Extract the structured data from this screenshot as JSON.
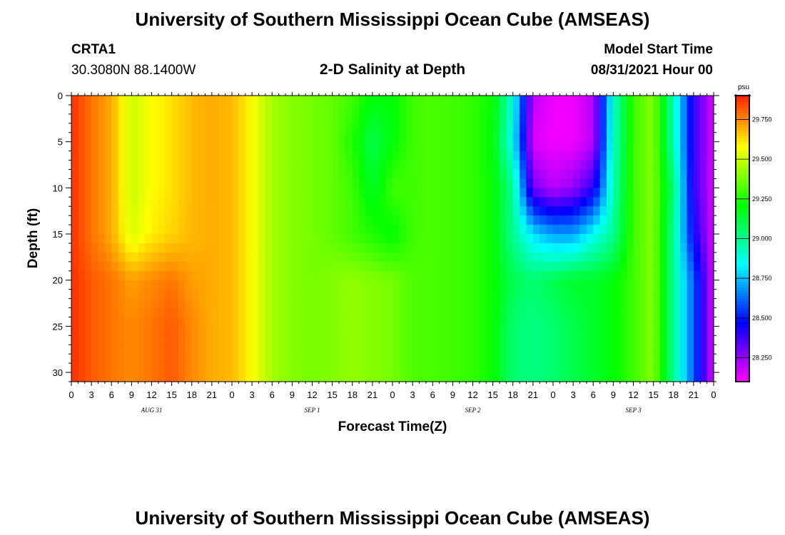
{
  "header": {
    "title": "University of Southern Mississippi Ocean Cube (AMSEAS)",
    "station": "CRTA1",
    "coords": "30.3080N  88.1400W",
    "start_label": "Model Start Time",
    "start_value": "08/31/2021 Hour 00"
  },
  "footer": {
    "title": "University of Southern Mississippi Ocean Cube (AMSEAS)"
  },
  "chart_data": {
    "type": "heatmap",
    "title": "2-D Salinity at Depth",
    "xlabel": "Forecast Time(Z)",
    "ylabel": "Depth (ft)",
    "x_start": "08/31/2021 00Z",
    "x_range_hours": [
      0,
      96
    ],
    "x_tick_labels": [
      "0",
      "3",
      "6",
      "9",
      "12",
      "15",
      "18",
      "21",
      "0",
      "3",
      "6",
      "9",
      "12",
      "15",
      "18",
      "21",
      "0",
      "3",
      "6",
      "9",
      "12",
      "15",
      "18",
      "21",
      "0",
      "3",
      "6",
      "9",
      "12",
      "15",
      "18",
      "21",
      "0"
    ],
    "date_labels": [
      {
        "text": "AUG 31",
        "hour": 12
      },
      {
        "text": "SEP 1",
        "hour": 36
      },
      {
        "text": "SEP 2",
        "hour": 60
      },
      {
        "text": "SEP 3",
        "hour": 84
      }
    ],
    "y_range": [
      0,
      31
    ],
    "y_ticks": [
      0,
      5,
      10,
      15,
      20,
      25,
      30
    ],
    "y_inverted": true,
    "colorbar": {
      "unit": "psu",
      "range": [
        28.1,
        29.9
      ],
      "tick_values": [
        28.25,
        28.5,
        28.75,
        29.0,
        29.25,
        29.5,
        29.75
      ],
      "tick_labels": [
        "28.250",
        "28.500",
        "28.750",
        "29.000",
        "29.250",
        "29.500",
        "29.750"
      ]
    },
    "hours": [
      0,
      3,
      6,
      9,
      12,
      15,
      18,
      21,
      24,
      27,
      30,
      33,
      36,
      39,
      42,
      45,
      48,
      51,
      54,
      57,
      60,
      63,
      66,
      69,
      72,
      75,
      78,
      81,
      84,
      87,
      90,
      93,
      96
    ],
    "depths": [
      0,
      5,
      10,
      15,
      20,
      25,
      30
    ],
    "salinity": [
      [
        29.88,
        29.78,
        29.7,
        29.5,
        29.58,
        29.62,
        29.68,
        29.7,
        29.68,
        29.58,
        29.45,
        29.4,
        29.38,
        29.35,
        29.3,
        29.2,
        29.2,
        29.3,
        29.32,
        29.3,
        29.28,
        29.22,
        28.9,
        28.2,
        28.12,
        28.12,
        28.2,
        28.9,
        29.3,
        29.4,
        28.95,
        28.4,
        28.15
      ],
      [
        29.88,
        29.78,
        29.7,
        29.5,
        29.58,
        29.62,
        29.68,
        29.7,
        29.68,
        29.58,
        29.45,
        29.4,
        29.38,
        29.35,
        29.25,
        29.1,
        29.2,
        29.3,
        29.32,
        29.3,
        29.28,
        29.2,
        28.85,
        28.15,
        28.12,
        28.12,
        28.2,
        28.92,
        29.3,
        29.4,
        28.95,
        28.4,
        28.15
      ],
      [
        29.88,
        29.78,
        29.7,
        29.5,
        29.58,
        29.62,
        29.68,
        29.7,
        29.68,
        29.58,
        29.45,
        29.4,
        29.38,
        29.35,
        29.3,
        29.15,
        29.3,
        29.3,
        29.32,
        29.3,
        29.28,
        29.22,
        29.0,
        28.3,
        28.2,
        28.25,
        28.4,
        28.95,
        29.3,
        29.4,
        29.05,
        28.4,
        28.15
      ],
      [
        29.88,
        29.78,
        29.7,
        29.52,
        29.6,
        29.64,
        29.68,
        29.7,
        29.68,
        29.58,
        29.45,
        29.4,
        29.38,
        29.35,
        29.3,
        29.25,
        29.2,
        29.3,
        29.32,
        29.3,
        29.28,
        29.22,
        29.0,
        28.8,
        28.7,
        28.7,
        28.85,
        29.0,
        29.3,
        29.4,
        29.0,
        28.45,
        28.15
      ],
      [
        29.88,
        29.82,
        29.78,
        29.72,
        29.75,
        29.78,
        29.72,
        29.7,
        29.68,
        29.58,
        29.45,
        29.4,
        29.38,
        29.4,
        29.42,
        29.4,
        29.38,
        29.32,
        29.32,
        29.3,
        29.28,
        29.22,
        29.1,
        29.05,
        29.1,
        29.15,
        29.15,
        29.2,
        29.3,
        29.4,
        29.0,
        28.6,
        28.15
      ],
      [
        29.88,
        29.82,
        29.78,
        29.75,
        29.78,
        29.82,
        29.75,
        29.7,
        29.68,
        29.58,
        29.45,
        29.4,
        29.38,
        29.4,
        29.42,
        29.4,
        29.38,
        29.32,
        29.32,
        29.3,
        29.28,
        29.22,
        29.05,
        29.02,
        29.05,
        29.1,
        29.15,
        29.2,
        29.3,
        29.4,
        29.0,
        28.6,
        28.15
      ],
      [
        29.88,
        29.82,
        29.78,
        29.75,
        29.78,
        29.82,
        29.75,
        29.7,
        29.68,
        29.58,
        29.45,
        29.4,
        29.38,
        29.4,
        29.42,
        29.4,
        29.38,
        29.32,
        29.32,
        29.3,
        29.28,
        29.22,
        29.05,
        29.02,
        29.05,
        29.1,
        29.15,
        29.2,
        29.3,
        29.4,
        29.0,
        28.6,
        28.15
      ]
    ]
  }
}
